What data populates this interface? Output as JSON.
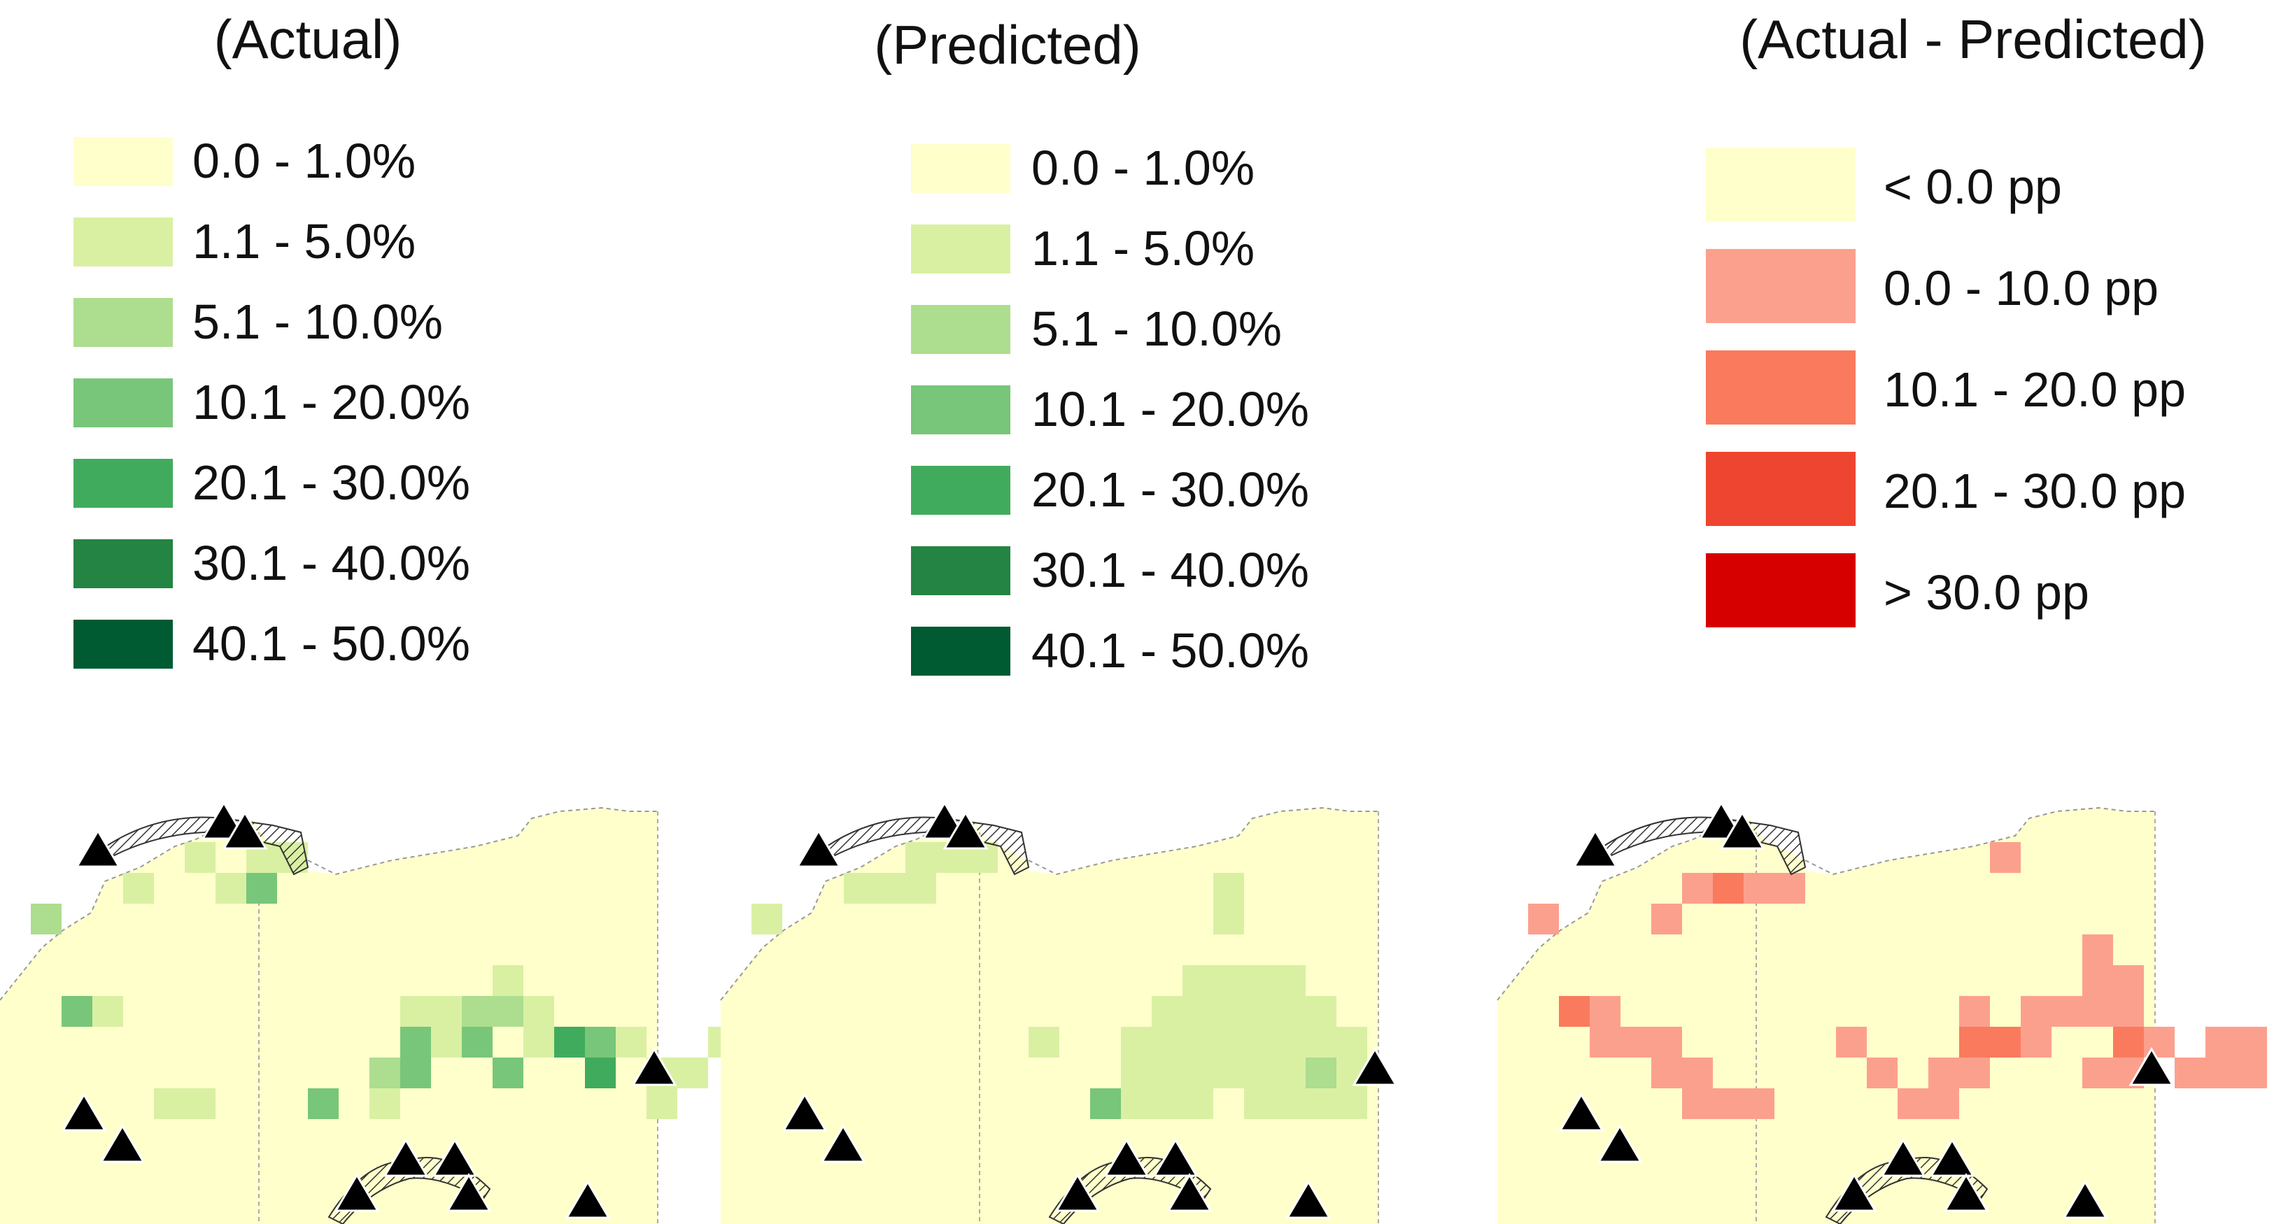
{
  "panels": [
    {
      "id": "actual",
      "title_line1": "",
      "title_line2": "(Actual)",
      "legend": [
        {
          "label": "0.0 - 1.0%",
          "color": "#FFFFCC"
        },
        {
          "label": "1.1 - 5.0%",
          "color": "#D9F0A3"
        },
        {
          "label": "5.1 - 10.0%",
          "color": "#ADDD8E"
        },
        {
          "label": "10.1 - 20.0%",
          "color": "#78C679"
        },
        {
          "label": "20.1 - 30.0%",
          "color": "#41AB5D"
        },
        {
          "label": "30.1 - 40.0%",
          "color": "#238443"
        },
        {
          "label": "40.1 - 50.0%",
          "color": "#005A32"
        }
      ]
    },
    {
      "id": "predicted",
      "title_line1": "",
      "title_line2": "(Predicted)",
      "legend": [
        {
          "label": "0.0 - 1.0%",
          "color": "#FFFFCC"
        },
        {
          "label": "1.1 - 5.0%",
          "color": "#D9F0A3"
        },
        {
          "label": "5.1 - 10.0%",
          "color": "#ADDD8E"
        },
        {
          "label": "10.1 - 20.0%",
          "color": "#78C679"
        },
        {
          "label": "20.1 - 30.0%",
          "color": "#41AB5D"
        },
        {
          "label": "30.1 - 40.0%",
          "color": "#238443"
        },
        {
          "label": "40.1 - 50.0%",
          "color": "#005A32"
        }
      ]
    },
    {
      "id": "difference",
      "title_line1": "",
      "title_line2": "(Actual - Predicted)",
      "legend": [
        {
          "label": "< 0.0 pp",
          "color": "#FFFFCC"
        },
        {
          "label": "0.0 - 10.0 pp",
          "color": "#FCA08E"
        },
        {
          "label": "10.1 - 20.0 pp",
          "color": "#FA7A5E"
        },
        {
          "label": "20.1 - 30.0 pp",
          "color": "#EE4530"
        },
        {
          "label": "> 30.0 pp",
          "color": "#D70000"
        }
      ]
    }
  ],
  "map_cells": {
    "actual": [
      [
        6,
        1,
        "#D9F0A3"
      ],
      [
        8,
        1,
        "#D9F0A3"
      ],
      [
        9,
        1,
        "#D9F0A3"
      ],
      [
        4,
        2,
        "#D9F0A3"
      ],
      [
        7,
        2,
        "#D9F0A3"
      ],
      [
        8,
        2,
        "#78C679"
      ],
      [
        1,
        3,
        "#ADDD8E"
      ],
      [
        2,
        6,
        "#78C679"
      ],
      [
        3,
        6,
        "#D9F0A3"
      ],
      [
        16,
        5,
        "#D9F0A3"
      ],
      [
        16,
        6,
        "#ADDD8E"
      ],
      [
        17,
        6,
        "#D9F0A3"
      ],
      [
        13,
        6,
        "#D9F0A3"
      ],
      [
        14,
        6,
        "#D9F0A3"
      ],
      [
        15,
        6,
        "#ADDD8E"
      ],
      [
        13,
        7,
        "#78C679"
      ],
      [
        14,
        7,
        "#D9F0A3"
      ],
      [
        15,
        7,
        "#78C679"
      ],
      [
        17,
        7,
        "#D9F0A3"
      ],
      [
        18,
        7,
        "#41AB5D"
      ],
      [
        19,
        7,
        "#78C679"
      ],
      [
        12,
        8,
        "#ADDD8E"
      ],
      [
        13,
        8,
        "#78C679"
      ],
      [
        16,
        8,
        "#78C679"
      ],
      [
        19,
        8,
        "#41AB5D"
      ],
      [
        21,
        8,
        "#D9F0A3"
      ],
      [
        22,
        8,
        "#D9F0A3"
      ],
      [
        20,
        7,
        "#D9F0A3"
      ],
      [
        10,
        9,
        "#78C679"
      ],
      [
        12,
        9,
        "#D9F0A3"
      ],
      [
        23,
        7,
        "#D9F0A3"
      ],
      [
        5,
        9,
        "#D9F0A3"
      ],
      [
        6,
        9,
        "#D9F0A3"
      ],
      [
        21,
        9,
        "#D9F0A3"
      ]
    ],
    "predicted": [
      [
        6,
        1,
        "#D9F0A3"
      ],
      [
        7,
        1,
        "#D9F0A3"
      ],
      [
        8,
        1,
        "#D9F0A3"
      ],
      [
        4,
        2,
        "#D9F0A3"
      ],
      [
        5,
        2,
        "#D9F0A3"
      ],
      [
        6,
        2,
        "#D9F0A3"
      ],
      [
        1,
        3,
        "#D9F0A3"
      ],
      [
        16,
        2,
        "#D9F0A3"
      ],
      [
        16,
        3,
        "#D9F0A3"
      ],
      [
        10,
        7,
        "#D9F0A3"
      ],
      [
        15,
        5,
        "#D9F0A3"
      ],
      [
        16,
        5,
        "#D9F0A3"
      ],
      [
        17,
        5,
        "#D9F0A3"
      ],
      [
        18,
        5,
        "#D9F0A3"
      ],
      [
        14,
        6,
        "#D9F0A3"
      ],
      [
        15,
        6,
        "#D9F0A3"
      ],
      [
        16,
        6,
        "#D9F0A3"
      ],
      [
        17,
        6,
        "#D9F0A3"
      ],
      [
        18,
        6,
        "#D9F0A3"
      ],
      [
        19,
        6,
        "#D9F0A3"
      ],
      [
        13,
        7,
        "#D9F0A3"
      ],
      [
        14,
        7,
        "#D9F0A3"
      ],
      [
        15,
        7,
        "#D9F0A3"
      ],
      [
        16,
        7,
        "#D9F0A3"
      ],
      [
        17,
        7,
        "#D9F0A3"
      ],
      [
        18,
        7,
        "#D9F0A3"
      ],
      [
        19,
        7,
        "#D9F0A3"
      ],
      [
        20,
        7,
        "#D9F0A3"
      ],
      [
        13,
        8,
        "#D9F0A3"
      ],
      [
        14,
        8,
        "#D9F0A3"
      ],
      [
        15,
        8,
        "#D9F0A3"
      ],
      [
        16,
        8,
        "#D9F0A3"
      ],
      [
        17,
        8,
        "#D9F0A3"
      ],
      [
        18,
        8,
        "#D9F0A3"
      ],
      [
        19,
        8,
        "#ADDD8E"
      ],
      [
        20,
        8,
        "#D9F0A3"
      ],
      [
        12,
        9,
        "#78C679"
      ],
      [
        13,
        9,
        "#D9F0A3"
      ],
      [
        14,
        9,
        "#D9F0A3"
      ],
      [
        15,
        9,
        "#D9F0A3"
      ],
      [
        17,
        9,
        "#D9F0A3"
      ],
      [
        18,
        9,
        "#D9F0A3"
      ],
      [
        19,
        9,
        "#D9F0A3"
      ],
      [
        20,
        9,
        "#D9F0A3"
      ]
    ],
    "difference": [
      [
        6,
        2,
        "#FCA08E"
      ],
      [
        7,
        2,
        "#FA7A5E"
      ],
      [
        8,
        2,
        "#FCA08E"
      ],
      [
        9,
        2,
        "#FCA08E"
      ],
      [
        5,
        3,
        "#FCA08E"
      ],
      [
        1,
        3,
        "#FCA08E"
      ],
      [
        16,
        1,
        "#FCA08E"
      ],
      [
        2,
        6,
        "#FA7A5E"
      ],
      [
        3,
        6,
        "#FCA08E"
      ],
      [
        4,
        7,
        "#FCA08E"
      ],
      [
        5,
        7,
        "#FCA08E"
      ],
      [
        3,
        7,
        "#FCA08E"
      ],
      [
        5,
        8,
        "#FCA08E"
      ],
      [
        6,
        8,
        "#FCA08E"
      ],
      [
        6,
        9,
        "#FCA08E"
      ],
      [
        7,
        9,
        "#FCA08E"
      ],
      [
        8,
        9,
        "#FCA08E"
      ],
      [
        19,
        4,
        "#FCA08E"
      ],
      [
        20,
        5,
        "#FCA08E"
      ],
      [
        19,
        5,
        "#FCA08E"
      ],
      [
        17,
        6,
        "#FCA08E"
      ],
      [
        18,
        6,
        "#FCA08E"
      ],
      [
        19,
        6,
        "#FCA08E"
      ],
      [
        20,
        6,
        "#FCA08E"
      ],
      [
        15,
        6,
        "#FCA08E"
      ],
      [
        15,
        7,
        "#FA7A5E"
      ],
      [
        16,
        7,
        "#FA7A5E"
      ],
      [
        17,
        7,
        "#FCA08E"
      ],
      [
        20,
        7,
        "#FA7A5E"
      ],
      [
        21,
        7,
        "#FCA08E"
      ],
      [
        14,
        8,
        "#FCA08E"
      ],
      [
        15,
        8,
        "#FCA08E"
      ],
      [
        19,
        8,
        "#FCA08E"
      ],
      [
        20,
        8,
        "#FCA08E"
      ],
      [
        22,
        8,
        "#FCA08E"
      ],
      [
        23,
        8,
        "#FCA08E"
      ],
      [
        24,
        8,
        "#FCA08E"
      ],
      [
        13,
        9,
        "#FCA08E"
      ],
      [
        14,
        9,
        "#FCA08E"
      ],
      [
        23,
        7,
        "#FCA08E"
      ],
      [
        24,
        7,
        "#FCA08E"
      ],
      [
        11,
        7,
        "#FCA08E"
      ],
      [
        12,
        8,
        "#FCA08E"
      ]
    ]
  },
  "markers": {
    "shape": "triangle-icon",
    "color": "#000000",
    "outline_color": "#FFFFFF"
  }
}
